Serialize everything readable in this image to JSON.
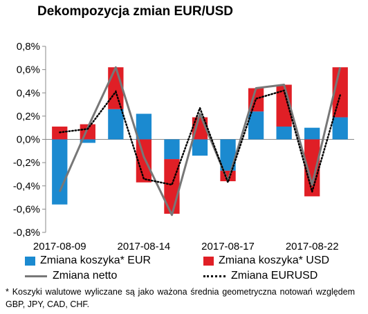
{
  "chart_data": {
    "type": "bar",
    "title": "Dekompozycja zmian EUR/USD",
    "xlabel": "",
    "ylabel": "",
    "ylim": [
      -0.8,
      0.8
    ],
    "y_ticks": [
      "0,8%",
      "0,6%",
      "0,4%",
      "0,2%",
      "0,0%",
      "-0,2%",
      "-0,4%",
      "-0,6%",
      "-0,8%"
    ],
    "y_tick_values": [
      0.8,
      0.6,
      0.4,
      0.2,
      0.0,
      -0.2,
      -0.4,
      -0.6,
      -0.8
    ],
    "x_ticks": [
      "2017-08-09",
      "2017-08-14",
      "2017-08-17",
      "2017-08-22"
    ],
    "x_tick_indices": [
      0,
      3,
      6,
      9
    ],
    "n_points": 11,
    "grid": false,
    "legend_position": "bottom",
    "series": [
      {
        "name": "Zmiana koszyka* EUR",
        "kind": "bar",
        "color": "#1b8ad0",
        "values": [
          -0.56,
          -0.03,
          0.26,
          0.22,
          -0.17,
          -0.14,
          -0.27,
          0.24,
          0.11,
          0.1,
          0.19
        ]
      },
      {
        "name": "Zmiana koszyka* USD",
        "kind": "bar",
        "color": "#e01f26",
        "values": [
          0.11,
          0.13,
          0.36,
          -0.37,
          -0.47,
          0.19,
          -0.09,
          0.2,
          0.36,
          -0.49,
          0.43
        ]
      },
      {
        "name": "Zmiana netto",
        "kind": "line",
        "color": "#777777",
        "values": [
          -0.45,
          0.1,
          0.62,
          -0.15,
          -0.65,
          0.22,
          -0.36,
          0.44,
          0.47,
          -0.39,
          0.62
        ]
      },
      {
        "name": "Zmiana EURUSD",
        "kind": "dotted-line",
        "color": "#000000",
        "values": [
          0.06,
          0.09,
          0.41,
          -0.34,
          -0.39,
          0.27,
          -0.37,
          0.35,
          0.42,
          -0.45,
          0.38
        ]
      }
    ]
  },
  "footnote": "* Koszyki walutowe wyliczane są jako ważona średnia geometryczna notowań względem GBP, JPY, CAD, CHF."
}
